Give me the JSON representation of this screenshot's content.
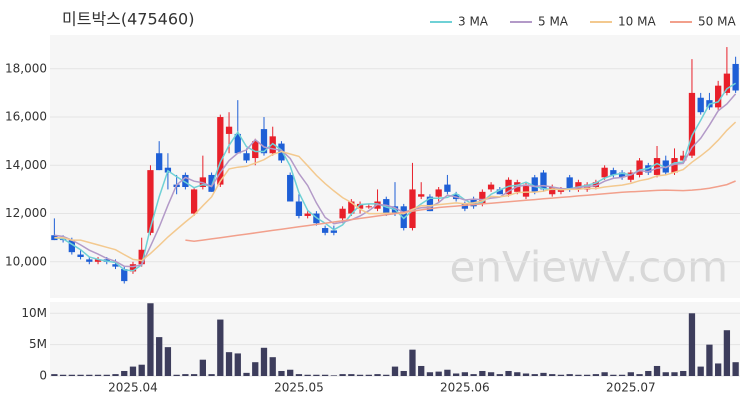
{
  "chart_data": {
    "type": "candlestick",
    "title": "미트박스(475460)",
    "watermark": "enViewV.com",
    "up_color": "#e8202a",
    "down_color": "#1e5fd6",
    "categories": [
      null,
      null,
      null,
      null,
      null,
      null,
      null,
      null,
      null,
      "2025.04",
      null,
      null,
      null,
      null,
      null,
      null,
      null,
      null,
      null,
      null,
      null,
      null,
      null,
      null,
      null,
      null,
      null,
      null,
      "2025.05",
      null,
      null,
      null,
      null,
      null,
      null,
      null,
      null,
      null,
      null,
      null,
      null,
      null,
      null,
      null,
      null,
      null,
      null,
      "2025.06",
      null,
      null,
      null,
      null,
      null,
      null,
      null,
      null,
      null,
      null,
      null,
      null,
      null,
      null,
      null,
      null,
      null,
      null,
      "2025.07",
      null,
      null,
      null,
      null,
      null,
      null,
      null,
      null,
      null,
      null,
      null,
      null
    ],
    "ohlc": [
      [
        11100,
        11800,
        10900,
        10900
      ],
      [
        11000,
        11100,
        10800,
        10900
      ],
      [
        10900,
        11000,
        10300,
        10400
      ],
      [
        10300,
        10500,
        10100,
        10200
      ],
      [
        10100,
        10200,
        9900,
        10000
      ],
      [
        10000,
        10200,
        9900,
        10100
      ],
      [
        10100,
        10200,
        9900,
        10000
      ],
      [
        9900,
        10100,
        9700,
        9800
      ],
      [
        9700,
        9800,
        9100,
        9200
      ],
      [
        9600,
        10000,
        9500,
        9900
      ],
      [
        9900,
        11000,
        9800,
        10500
      ],
      [
        11200,
        14000,
        11100,
        13800
      ],
      [
        14500,
        15000,
        13800,
        13800
      ],
      [
        13900,
        14500,
        13000,
        13700
      ],
      [
        13200,
        13600,
        12800,
        13100
      ],
      [
        13600,
        13700,
        13000,
        13100
      ],
      [
        12000,
        13100,
        11900,
        13000
      ],
      [
        13100,
        14400,
        13000,
        13500
      ],
      [
        13600,
        13700,
        12900,
        12900
      ],
      [
        13200,
        16100,
        13100,
        16000
      ],
      [
        15300,
        16200,
        14500,
        15600
      ],
      [
        15300,
        16700,
        14500,
        14500
      ],
      [
        14500,
        14700,
        14100,
        14200
      ],
      [
        14300,
        15100,
        14000,
        15000
      ],
      [
        15500,
        16000,
        14400,
        14500
      ],
      [
        14500,
        15600,
        14400,
        15200
      ],
      [
        14900,
        15000,
        14100,
        14200
      ],
      [
        13600,
        13700,
        12500,
        12500
      ],
      [
        12500,
        12800,
        11800,
        11900
      ],
      [
        11900,
        12100,
        11800,
        12000
      ],
      [
        12000,
        12100,
        11500,
        11600
      ],
      [
        11400,
        11500,
        11100,
        11200
      ],
      [
        11300,
        11500,
        11100,
        11200
      ],
      [
        11800,
        12300,
        11600,
        12200
      ],
      [
        12000,
        12600,
        11900,
        12500
      ],
      [
        12200,
        12500,
        12000,
        12400
      ],
      [
        12300,
        12400,
        12200,
        12300
      ],
      [
        12200,
        13000,
        12100,
        12500
      ],
      [
        12600,
        12700,
        11900,
        12000
      ],
      [
        12300,
        13300,
        11900,
        12000
      ],
      [
        12300,
        12400,
        11300,
        11400
      ],
      [
        11400,
        14100,
        11300,
        13000
      ],
      [
        12700,
        13300,
        12600,
        12800
      ],
      [
        12700,
        12800,
        12100,
        12100
      ],
      [
        12700,
        13100,
        12500,
        13000
      ],
      [
        13200,
        13600,
        12800,
        12900
      ],
      [
        12800,
        12900,
        12500,
        12600
      ],
      [
        12400,
        12500,
        12100,
        12200
      ],
      [
        12600,
        12700,
        12200,
        12300
      ],
      [
        12400,
        13000,
        12300,
        12900
      ],
      [
        13000,
        13300,
        12900,
        13200
      ],
      [
        13000,
        13100,
        12800,
        12800
      ],
      [
        12800,
        13500,
        12700,
        13400
      ],
      [
        12900,
        13400,
        12800,
        13300
      ],
      [
        12700,
        13300,
        12600,
        13200
      ],
      [
        13500,
        13600,
        12800,
        12900
      ],
      [
        13700,
        13800,
        12900,
        13000
      ],
      [
        12800,
        13200,
        12700,
        13100
      ],
      [
        12900,
        13100,
        12800,
        13000
      ],
      [
        13500,
        13600,
        12900,
        13000
      ],
      [
        13000,
        13400,
        12900,
        13300
      ],
      [
        13000,
        13300,
        12900,
        13200
      ],
      [
        13100,
        13400,
        13000,
        13300
      ],
      [
        13500,
        14000,
        13400,
        13900
      ],
      [
        13800,
        13900,
        13500,
        13600
      ],
      [
        13700,
        13800,
        13400,
        13500
      ],
      [
        13400,
        13800,
        13300,
        13700
      ],
      [
        13600,
        14300,
        13500,
        14200
      ],
      [
        14000,
        14100,
        13600,
        13700
      ],
      [
        13600,
        14800,
        13500,
        14300
      ],
      [
        14200,
        14400,
        13600,
        13700
      ],
      [
        13700,
        14700,
        13600,
        14300
      ],
      [
        14200,
        14600,
        14100,
        14400
      ],
      [
        14400,
        18400,
        14300,
        17000
      ],
      [
        16800,
        17000,
        16100,
        16200
      ],
      [
        16700,
        17000,
        16300,
        16400
      ],
      [
        16400,
        17500,
        16300,
        17300
      ],
      [
        17000,
        18900,
        16900,
        17800
      ],
      [
        18200,
        18500,
        17000,
        17100
      ]
    ],
    "series": [
      {
        "name": "3 MA",
        "color": "#6fd1d6",
        "values": [
          11000,
          10950,
          10730,
          10500,
          10200,
          10100,
          10030,
          9970,
          9670,
          9630,
          9870,
          11400,
          12700,
          13770,
          13530,
          13300,
          13070,
          13200,
          13130,
          14130,
          14830,
          15370,
          14770,
          14570,
          14570,
          14900,
          14630,
          13970,
          12870,
          12130,
          11830,
          11600,
          11330,
          11530,
          11970,
          12370,
          12400,
          12400,
          12270,
          12170,
          11800,
          12130,
          12400,
          12630,
          12630,
          12670,
          12830,
          12570,
          12370,
          12470,
          12800,
          12970,
          13130,
          13170,
          13300,
          13130,
          13030,
          13000,
          13030,
          13030,
          13100,
          13170,
          13270,
          13470,
          13600,
          13670,
          13600,
          13800,
          13870,
          14070,
          13900,
          14100,
          14130,
          15230,
          15870,
          16530,
          16630,
          17170,
          17400
        ]
      },
      {
        "name": "5 MA",
        "color": "#b39ac8",
        "values": [
          11100,
          11050,
          10900,
          10700,
          10480,
          10320,
          10140,
          10020,
          9820,
          9800,
          9880,
          10640,
          11440,
          12340,
          13180,
          13500,
          13340,
          13280,
          13120,
          13700,
          14200,
          14500,
          14640,
          15060,
          14760,
          14680,
          14620,
          14280,
          13660,
          13160,
          12440,
          11840,
          11580,
          11640,
          11740,
          11900,
          12120,
          12380,
          12340,
          12240,
          12040,
          12180,
          12240,
          12260,
          12460,
          12760,
          12680,
          12560,
          12600,
          12580,
          12640,
          12680,
          12920,
          13120,
          13180,
          13120,
          13160,
          13100,
          13040,
          13000,
          13080,
          13120,
          13160,
          13340,
          13460,
          13500,
          13600,
          13780,
          13740,
          13880,
          13920,
          14040,
          14080,
          14740,
          15120,
          15660,
          16260,
          16540,
          16960
        ]
      },
      {
        "name": "10 MA",
        "color": "#f3c98f",
        "values": [
          11000,
          11000,
          10900,
          10900,
          10800,
          10700,
          10600,
          10500,
          10300,
          10100,
          10050,
          10340,
          10680,
          11030,
          11340,
          11650,
          11940,
          12320,
          12690,
          13340,
          13850,
          13920,
          13960,
          14090,
          14230,
          14450,
          14570,
          14470,
          14370,
          13980,
          13580,
          13240,
          12940,
          12660,
          12460,
          12180,
          12000,
          12000,
          12010,
          12010,
          11990,
          12170,
          12330,
          12320,
          12370,
          12410,
          12440,
          12410,
          12440,
          12530,
          12710,
          12690,
          12750,
          12870,
          12890,
          12890,
          12930,
          13020,
          12990,
          13000,
          13010,
          13050,
          13040,
          13100,
          13140,
          13180,
          13250,
          13360,
          13430,
          13560,
          13600,
          13710,
          13820,
          14130,
          14390,
          14680,
          15040,
          15450,
          15790
        ]
      },
      {
        "name": "50 MA",
        "color": "#f2a08c",
        "values": [
          null,
          null,
          null,
          null,
          null,
          null,
          null,
          null,
          null,
          null,
          null,
          null,
          null,
          null,
          null,
          10900,
          10850,
          10900,
          10950,
          11000,
          11050,
          11100,
          11150,
          11200,
          11250,
          11300,
          11350,
          11400,
          11450,
          11500,
          11550,
          11600,
          11650,
          11700,
          11750,
          11800,
          11850,
          11900,
          11950,
          12000,
          12050,
          12100,
          12150,
          12200,
          12250,
          12280,
          12310,
          12340,
          12370,
          12400,
          12430,
          12460,
          12490,
          12520,
          12550,
          12580,
          12610,
          12640,
          12670,
          12700,
          12730,
          12760,
          12790,
          12820,
          12850,
          12880,
          12900,
          12920,
          12940,
          12960,
          12970,
          12960,
          12950,
          12970,
          13000,
          13050,
          13120,
          13200,
          13350
        ]
      }
    ],
    "ylim": [
      8500,
      19400
    ],
    "yticks": [
      {
        "value": 10000,
        "label": "10,000"
      },
      {
        "value": 12000,
        "label": "12,000"
      },
      {
        "value": 14000,
        "label": "14,000"
      },
      {
        "value": 16000,
        "label": "16,000"
      },
      {
        "value": 18000,
        "label": "18,000"
      }
    ],
    "grid": true,
    "legend": "top-right",
    "volume": {
      "color": "#3d3d5c",
      "ylim": [
        0,
        11800000
      ],
      "yticks": [
        {
          "value": 0,
          "label": "0"
        },
        {
          "value": 5000000,
          "label": "5M"
        },
        {
          "value": 10000000,
          "label": "10M"
        }
      ],
      "values": [
        300000,
        200000,
        200000,
        200000,
        200000,
        200000,
        200000,
        300000,
        800000,
        1500000,
        1800000,
        11600000,
        6200000,
        4600000,
        200000,
        300000,
        300000,
        2600000,
        300000,
        9000000,
        3800000,
        3600000,
        500000,
        2200000,
        4500000,
        3000000,
        800000,
        1000000,
        300000,
        200000,
        200000,
        200000,
        100000,
        300000,
        300000,
        200000,
        200000,
        300000,
        200000,
        1500000,
        800000,
        4200000,
        1600000,
        600000,
        700000,
        1000000,
        400000,
        600000,
        300000,
        800000,
        600000,
        300000,
        800000,
        600000,
        400000,
        300000,
        500000,
        300000,
        200000,
        300000,
        200000,
        200000,
        300000,
        600000,
        200000,
        200000,
        600000,
        300000,
        800000,
        1600000,
        600000,
        600000,
        800000,
        10000000,
        1500000,
        5000000,
        2000000,
        7300000,
        2200000
      ]
    }
  }
}
